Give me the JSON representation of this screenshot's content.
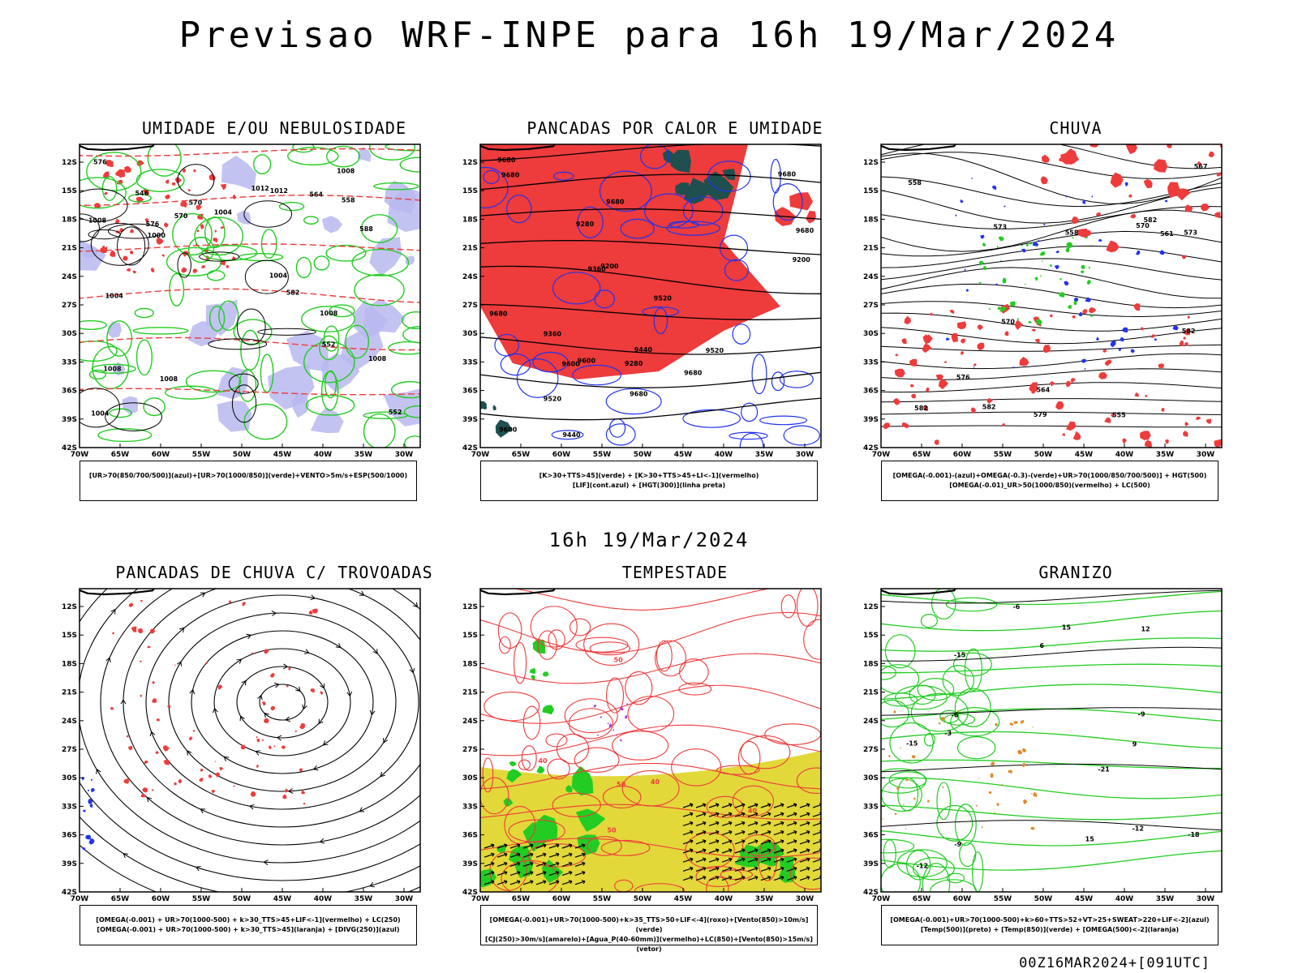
{
  "title": "Previsao WRF-INPE  para 16h 19/Mar/2024",
  "mid_title": "16h 19/Mar/2024",
  "footer": "00Z16MAR2024+[091UTC]",
  "lat_labels": [
    "12S",
    "15S",
    "18S",
    "21S",
    "24S",
    "27S",
    "30S",
    "33S",
    "36S",
    "39S",
    "42S"
  ],
  "lon_labels": [
    "70W",
    "65W",
    "60W",
    "55W",
    "50W",
    "45W",
    "40W",
    "35W",
    "30W"
  ],
  "colors": {
    "red": "#ee3b3b",
    "green": "#22cc22",
    "blue": "#2233ee",
    "lavender": "#b8b8f0",
    "yellow": "#e2d83a",
    "darkteal": "#1f4f4f",
    "orange": "#e08a2a",
    "magenta": "#b040e0"
  },
  "panels": [
    {
      "title": "UMIDADE E/OU NEBULOSIDADE",
      "legend": [
        "[UR>70(850/700/500)](azul)+[UR>70(1000/850)](verde)+VENTO>5m/s+ESP(500/1000)"
      ],
      "labels": [
        "1008",
        "1008",
        "1004",
        "1004",
        "1000",
        "1008",
        "1008",
        "1004",
        "1012",
        "1012",
        "1008",
        "1004",
        "1008",
        "576",
        "582",
        "570",
        "564",
        "558",
        "552",
        "576",
        "588",
        "570",
        "552",
        "546"
      ]
    },
    {
      "title": "PANCADAS POR CALOR E UMIDADE",
      "legend": [
        "[K>30+TTS>45](verde) + [K>30+TTS>45+LI<-1](vermelho)",
        "[LIF](cont.azul) + [HGT(300)](linha preta)"
      ],
      "labels": [
        "9680",
        "9680",
        "9680",
        "9680",
        "9680",
        "9680",
        "9680",
        "9600",
        "9600",
        "9520",
        "9600",
        "9520",
        "9440",
        "9360",
        "9440",
        "9360",
        "9280",
        "9520",
        "9280",
        "9200",
        "9200",
        "9680"
      ]
    },
    {
      "title": "CHUVA",
      "legend": [
        "[OMEGA(-0.001)-(azul)+OMEGA(-0.3)-(verde)+UR>70(1000/850/700/500)] + HGT(500)",
        "[OMEGA(-0.01)_UR>50(1000/850)(vermelho) + LC(500)"
      ],
      "labels": [
        "582",
        "582",
        "582",
        "579",
        "570",
        "576",
        "573",
        "567",
        "564",
        "561",
        "555",
        "558",
        "558",
        "573",
        "582",
        "570"
      ]
    },
    {
      "title": "PANCADAS DE CHUVA C/ TROVOADAS",
      "legend": [
        "[OMEGA(-0.001) + UR>70(1000-500) + k>30_TTS>45+LIF<-1](vermelho) + LC(250)",
        "[OMEGA(-0.001) + UR>70(1000-500) + k>30_TTS>45](laranja) + [DIVG(250)](azul)"
      ],
      "labels": []
    },
    {
      "title": "TEMPESTADE",
      "legend": [
        "[OMEGA(-0.001)+UR>70(1000-500)+k>35_TTS>50+LIF<-4](roxo)+[Vento(850)>10m/s](verde)",
        "[CJ(250)>30m/s](amarelo)+[Agua_P(40-60mm)](vermelho)+LC(850)+[Vento(850)>15m/s](vetor)"
      ],
      "labels": [
        "40",
        "50",
        "40",
        "40",
        "50",
        "50"
      ]
    },
    {
      "title": "GRANIZO",
      "legend": [
        "[OMEGA(-0.001)+UR>70(1000-500)+k>60+TTS>52+VT>25+SWEAT>220+LIF<-2](azul)",
        "[Temp(500)](preto) + [Temp(850)](verde) + [OMEGA(500)<-2](laranja)"
      ],
      "labels": [
        "-6",
        "-9",
        "-12",
        "-15",
        "-15",
        "-18",
        "-21",
        "-12",
        "-9",
        "-6",
        "-3",
        "15",
        "15",
        "12",
        "9",
        "6"
      ]
    }
  ]
}
